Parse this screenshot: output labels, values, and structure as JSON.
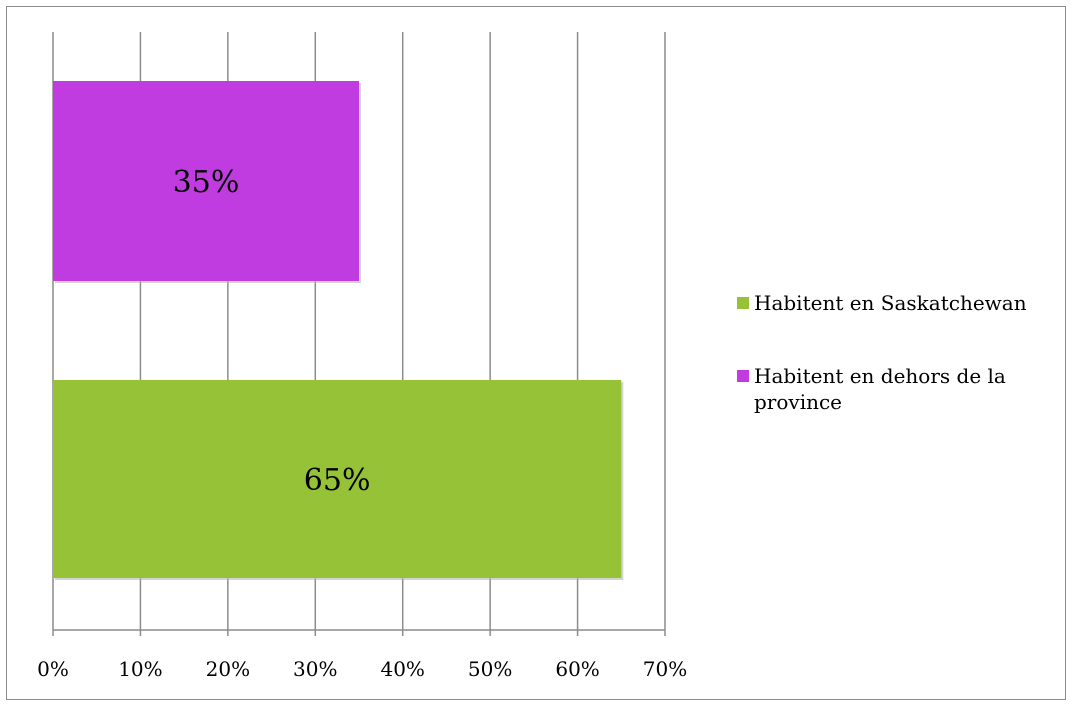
{
  "chart_data": {
    "type": "bar",
    "orientation": "horizontal",
    "title": "",
    "xlabel": "",
    "ylabel": "",
    "xlim": [
      0,
      70
    ],
    "x_ticks": [
      "0%",
      "10%",
      "20%",
      "30%",
      "40%",
      "50%",
      "60%",
      "70%"
    ],
    "grid": true,
    "legend_position": "right",
    "series": [
      {
        "name": "Habitent en Saskatchewan",
        "value": 65,
        "label": "65%",
        "color": "#95c236"
      },
      {
        "name": "Habitent en dehors de la province",
        "value": 35,
        "label": "35%",
        "color": "#c03ce0"
      }
    ]
  }
}
